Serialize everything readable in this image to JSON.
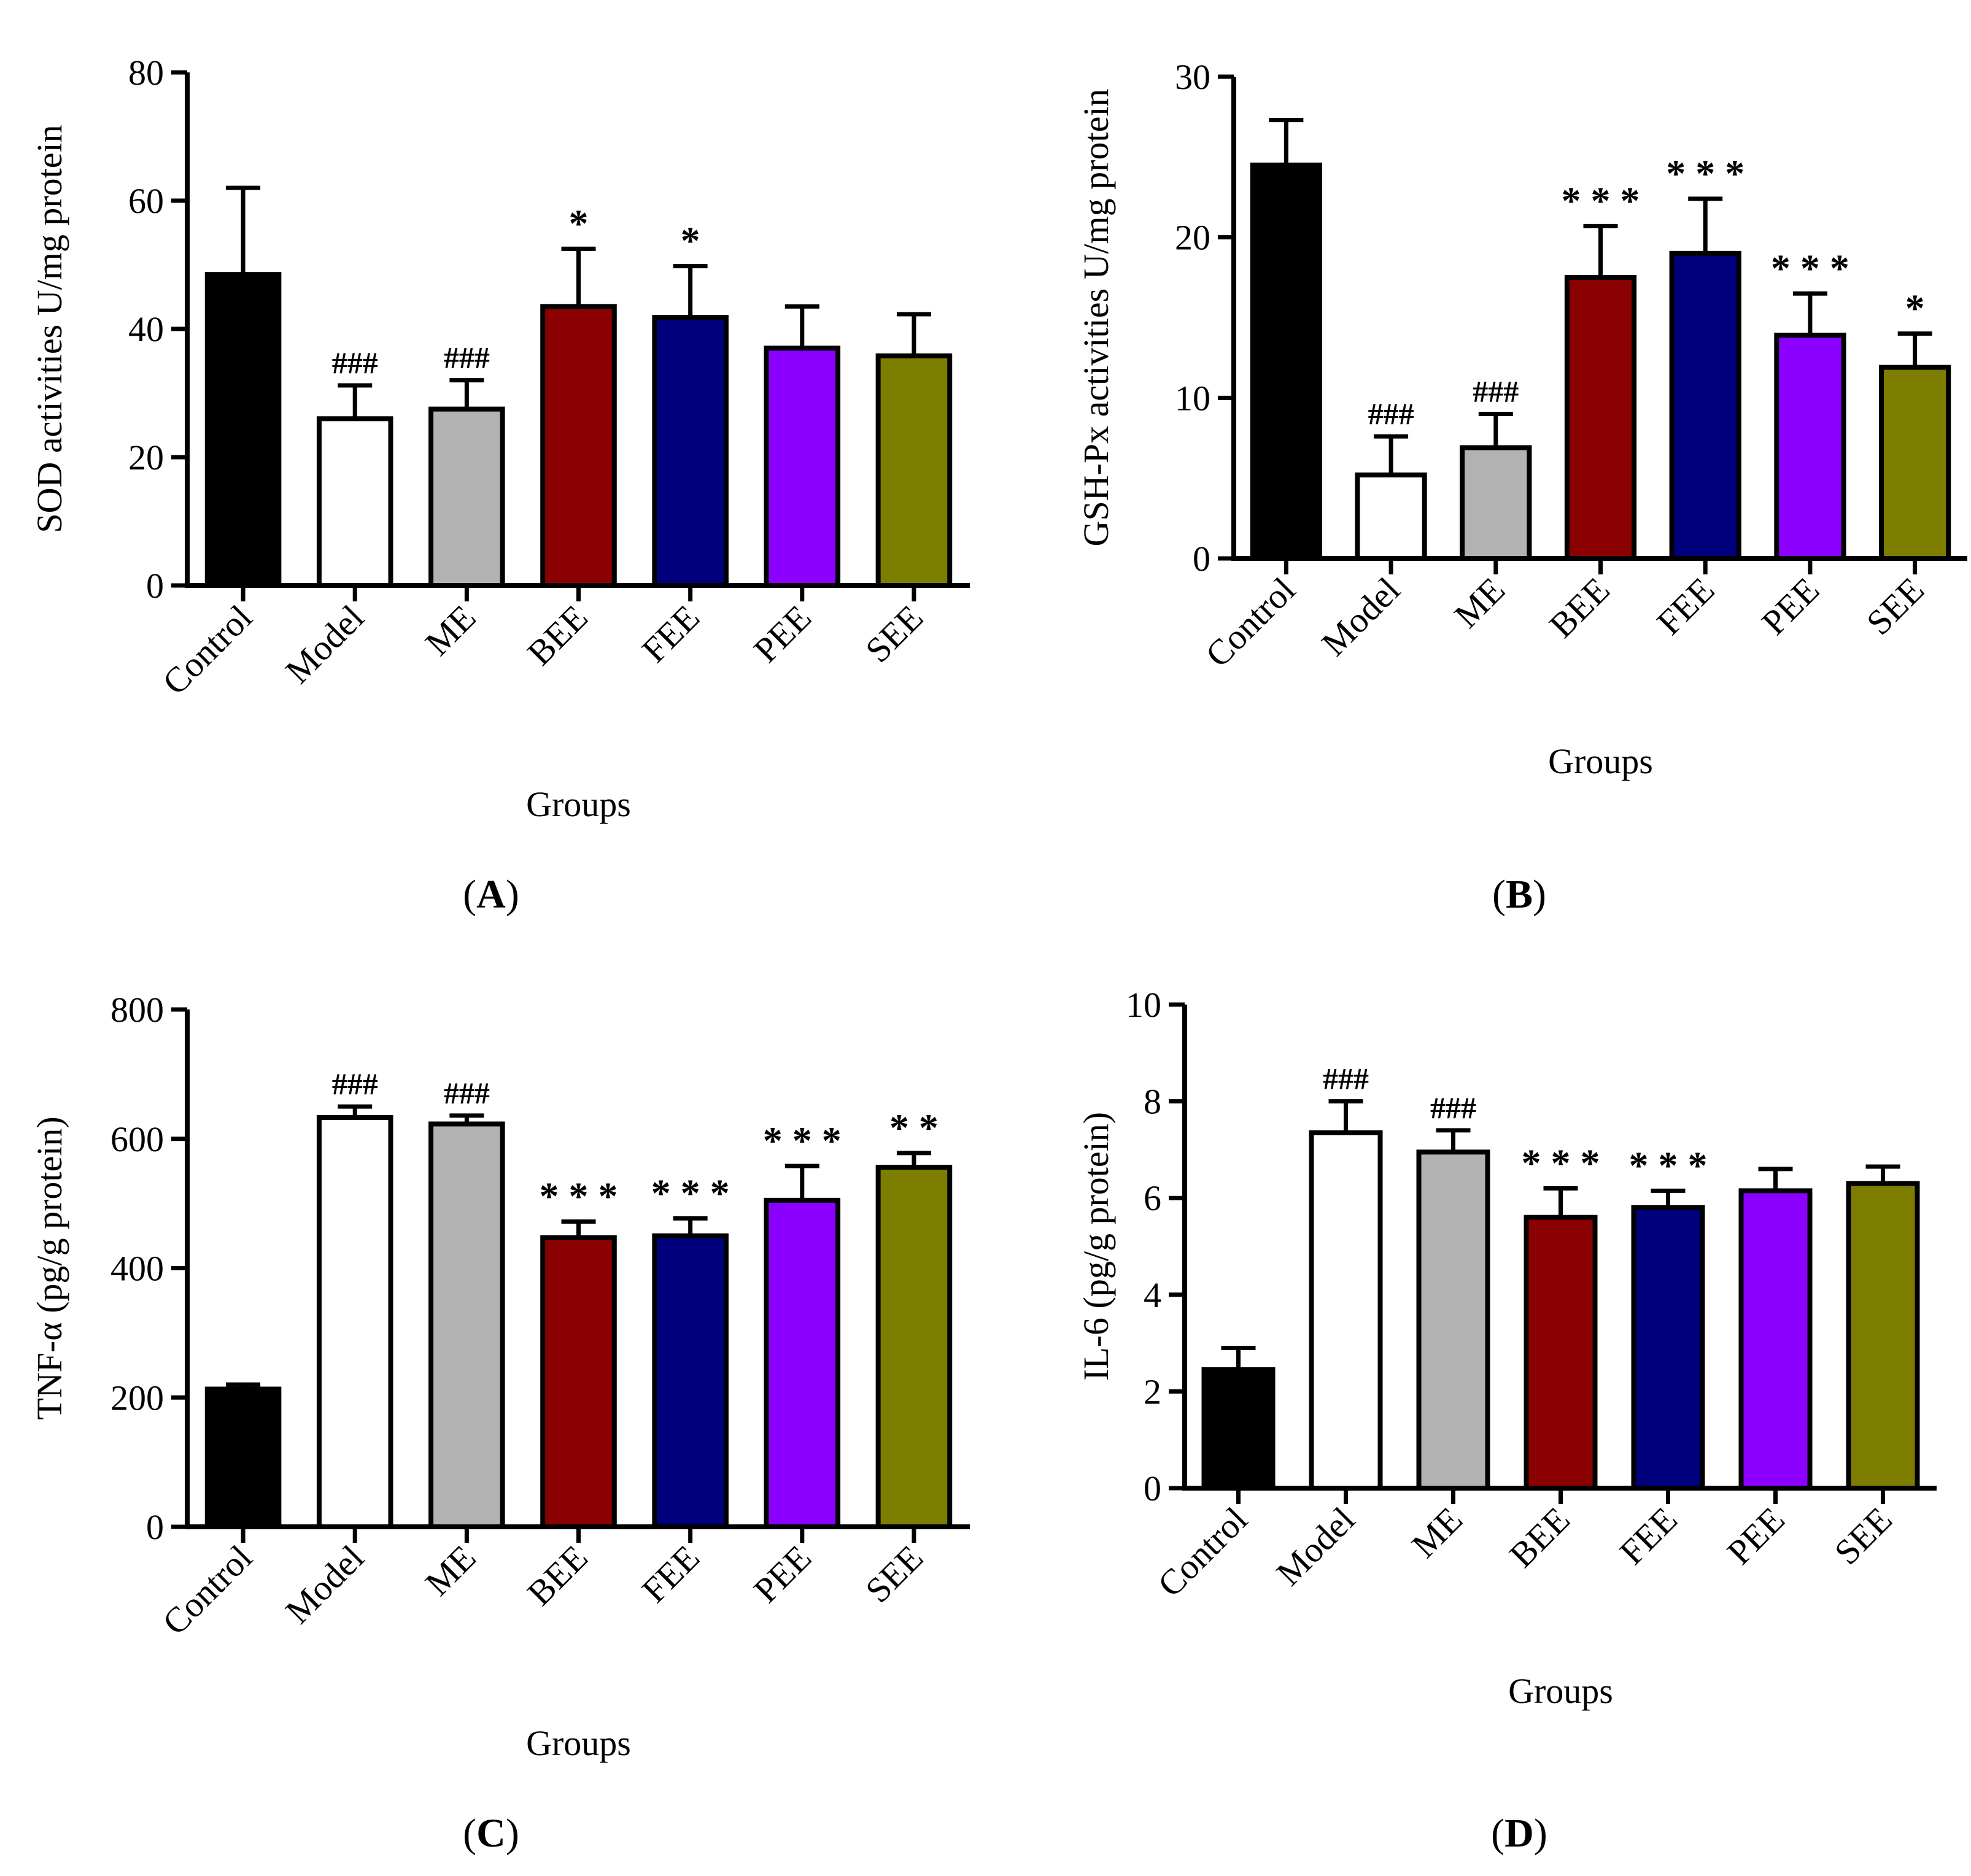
{
  "colors": {
    "axis": "#000000",
    "bar_outline": "#000000",
    "groups": {
      "Control": "#000000",
      "Model": "#ffffff",
      "ME": "#b2b2b2",
      "BEE": "#8b0000",
      "FEE": "#00007d",
      "PEE": "#8b00ff",
      "SEE": "#7d7d00"
    }
  },
  "chart_data": [
    {
      "panel": "A",
      "type": "bar",
      "caption": {
        "open": "(",
        "letter": "A",
        "close": ")"
      },
      "ylabel": "SOD activities U/mg protein",
      "xlabel": "Groups",
      "ylim": [
        0,
        80
      ],
      "yticks": [
        0,
        20,
        40,
        60,
        80
      ],
      "categories": [
        "Control",
        "Model",
        "ME",
        "BEE",
        "FEE",
        "PEE",
        "SEE"
      ],
      "values": [
        48.5,
        26,
        27.5,
        43.5,
        41.8,
        37,
        35.8
      ],
      "errors": [
        13.5,
        5.2,
        4.5,
        9,
        8,
        6.5,
        6.5
      ],
      "annotations": [
        "",
        "###",
        "###",
        "*",
        "*",
        "",
        ""
      ]
    },
    {
      "panel": "B",
      "type": "bar",
      "caption": {
        "open": "(",
        "letter": "B",
        "close": ")"
      },
      "ylabel": "GSH-Px activities U/mg protein",
      "xlabel": "Groups",
      "ylim": [
        0,
        30
      ],
      "yticks": [
        0,
        10,
        20,
        30
      ],
      "categories": [
        "Control",
        "Model",
        "ME",
        "BEE",
        "FEE",
        "PEE",
        "SEE"
      ],
      "values": [
        24.5,
        5.2,
        6.9,
        17.5,
        19,
        13.9,
        11.9
      ],
      "errors": [
        2.8,
        2.4,
        2.1,
        3.2,
        3.4,
        2.6,
        2.1
      ],
      "annotations": [
        "",
        "###",
        "###",
        "* * *",
        "* * *",
        "* * *",
        "*"
      ]
    },
    {
      "panel": "C",
      "type": "bar",
      "caption": {
        "open": "(",
        "letter": "C",
        "close": ")"
      },
      "ylabel": "TNF-α (pg/g protein)",
      "xlabel": "Groups",
      "ylim": [
        0,
        800
      ],
      "yticks": [
        0,
        200,
        400,
        600,
        800
      ],
      "categories": [
        "Control",
        "Model",
        "ME",
        "BEE",
        "FEE",
        "PEE",
        "SEE"
      ],
      "values": [
        213,
        633,
        623,
        447,
        450,
        505,
        556
      ],
      "errors": [
        7,
        17,
        13,
        25,
        27,
        53,
        22
      ],
      "annotations": [
        "",
        "###",
        "###",
        "* * *",
        "* * *",
        "* * *",
        "* *"
      ]
    },
    {
      "panel": "D",
      "type": "bar",
      "caption": {
        "open": "(",
        "letter": "D",
        "close": ")"
      },
      "ylabel": "IL-6 (pg/g protein)",
      "xlabel": "Groups",
      "ylim": [
        0,
        10
      ],
      "yticks": [
        0,
        2,
        4,
        6,
        8,
        10
      ],
      "categories": [
        "Control",
        "Model",
        "ME",
        "BEE",
        "FEE",
        "PEE",
        "SEE"
      ],
      "values": [
        2.45,
        7.35,
        6.95,
        5.6,
        5.8,
        6.15,
        6.3
      ],
      "errors": [
        0.45,
        0.65,
        0.45,
        0.6,
        0.35,
        0.45,
        0.35
      ],
      "annotations": [
        "",
        "###",
        "###",
        "* * *",
        "* * *",
        "",
        ""
      ]
    }
  ]
}
